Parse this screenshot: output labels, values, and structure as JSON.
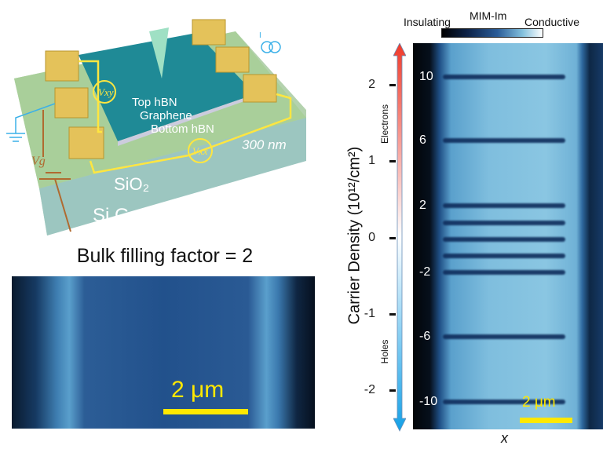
{
  "device": {
    "layers": [
      "Top hBN",
      "Graphene",
      "Bottom hBN"
    ],
    "thickness": "300 nm",
    "oxide": "SiO₂",
    "gate": "Si Gate",
    "vxy": "Vxy",
    "vxx": "Vxx",
    "vg": "Vg",
    "current": "I"
  },
  "bulk": {
    "title": "Bulk filling factor = 2",
    "scale": "2 μm"
  },
  "map": {
    "colorbar": {
      "title": "MIM-Im",
      "low": "Insulating",
      "high": "Conductive"
    },
    "ylabel": "Carrier Density (10¹²/cm²)",
    "electrons": "Electrons",
    "holes": "Holes",
    "yticks": [
      "2",
      "1",
      "0",
      "-1",
      "-2"
    ],
    "bands": [
      {
        "label": "10"
      },
      {
        "label": "6"
      },
      {
        "label": "2"
      },
      {
        "label": ""
      },
      {
        "label": ""
      },
      {
        "label": ""
      },
      {
        "label": "-2"
      },
      {
        "label": "-6"
      },
      {
        "label": "-10"
      }
    ],
    "scale": "2 μm",
    "xlabel": "x"
  }
}
